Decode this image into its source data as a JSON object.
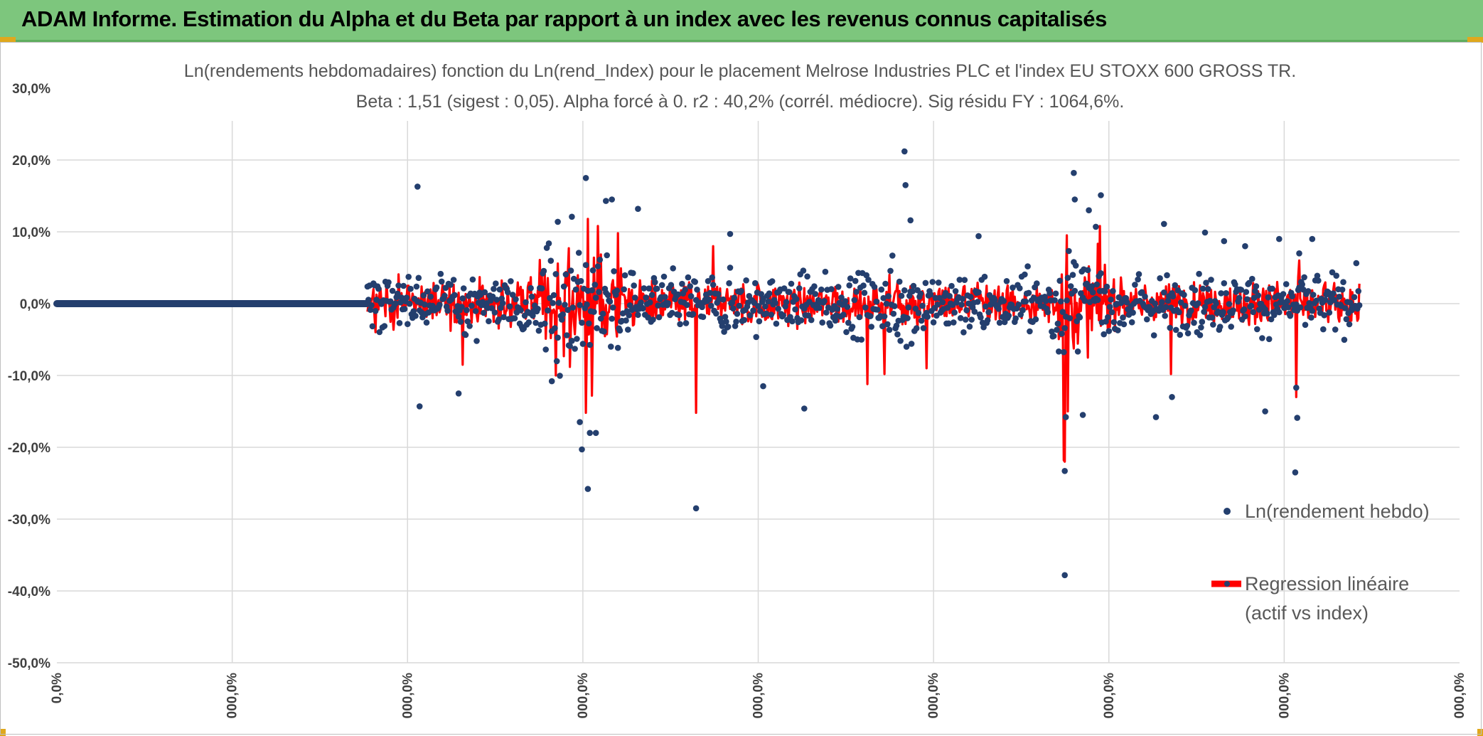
{
  "banner": {
    "title": "ADAM Informe. Estimation du Alpha et du Beta par rapport à un index avec les revenus connus capitalisés",
    "background_color": "#7dc67d",
    "accent_color": "#e0a81d"
  },
  "chart_data": {
    "type": "scatter",
    "title_line1": "Ln(rendements hebdomadaires) fonction du Ln(rend_Index) pour le placement Melrose Industries PLC et l'index EU STOXX 600 GROSS TR.",
    "title_line2": "Beta : 1,51 (sigest : 0,05). Alpha forcé à 0. r2 : 40,2% (corrél. médiocre). Sig résidu FY : 1064,6%.",
    "ylim": [
      -0.5,
      0.3
    ],
    "y_ticks": [
      {
        "value": 0.3,
        "label": "30,0%"
      },
      {
        "value": 0.2,
        "label": "20,0%"
      },
      {
        "value": 0.1,
        "label": "10,0%"
      },
      {
        "value": 0.0,
        "label": "0,0%"
      },
      {
        "value": -0.1,
        "label": "-10,0%"
      },
      {
        "value": -0.2,
        "label": "-20,0%"
      },
      {
        "value": -0.3,
        "label": "-30,0%"
      },
      {
        "value": -0.4,
        "label": "-40,0%"
      },
      {
        "value": -0.5,
        "label": "-50,0%"
      }
    ],
    "x_ticks": [
      "0,0%",
      "000,0%",
      "000,0%",
      "000,0%",
      "000,0%",
      "000,0%",
      "000,0%",
      "000,0%",
      "000,0%"
    ],
    "grid": true,
    "legend": {
      "placement": "bottom-right",
      "series_label": "Ln(rendement hebdo)",
      "line_label_1": "Regression linéaire",
      "line_label_2": "(actif vs index)"
    },
    "series": [
      {
        "name": "Ln(rendement hebdo)",
        "kind": "scatter",
        "color": "#243f6e"
      },
      {
        "name": "Regression linéaire (actif vs index)",
        "kind": "line",
        "color": "#ff0000"
      }
    ],
    "x_range": [
      0,
      1400
    ],
    "flat_segment_end": 310,
    "active_segment_end": 1300,
    "beta": 1.51,
    "highlighted_points": [
      {
        "x": 360,
        "y": 0.163
      },
      {
        "x": 362,
        "y": -0.143
      },
      {
        "x": 401,
        "y": -0.125
      },
      {
        "x": 528,
        "y": 0.175
      },
      {
        "x": 530,
        "y": -0.258
      },
      {
        "x": 524,
        "y": -0.203
      },
      {
        "x": 522,
        "y": -0.165
      },
      {
        "x": 532,
        "y": -0.18
      },
      {
        "x": 538,
        "y": -0.18
      },
      {
        "x": 548,
        "y": 0.143
      },
      {
        "x": 554,
        "y": 0.145
      },
      {
        "x": 514,
        "y": 0.121
      },
      {
        "x": 500,
        "y": 0.114
      },
      {
        "x": 494,
        "y": -0.108
      },
      {
        "x": 580,
        "y": 0.132
      },
      {
        "x": 638,
        "y": -0.285
      },
      {
        "x": 672,
        "y": 0.097
      },
      {
        "x": 705,
        "y": -0.115
      },
      {
        "x": 746,
        "y": -0.146
      },
      {
        "x": 846,
        "y": 0.212
      },
      {
        "x": 847,
        "y": 0.165
      },
      {
        "x": 852,
        "y": 0.116
      },
      {
        "x": 920,
        "y": 0.094
      },
      {
        "x": 1006,
        "y": -0.378
      },
      {
        "x": 1006,
        "y": -0.233
      },
      {
        "x": 1007,
        "y": -0.158
      },
      {
        "x": 1015,
        "y": 0.182
      },
      {
        "x": 1016,
        "y": 0.145
      },
      {
        "x": 1024,
        "y": -0.155
      },
      {
        "x": 1030,
        "y": 0.13
      },
      {
        "x": 1037,
        "y": 0.107
      },
      {
        "x": 1042,
        "y": 0.151
      },
      {
        "x": 1097,
        "y": -0.158
      },
      {
        "x": 1105,
        "y": 0.111
      },
      {
        "x": 1113,
        "y": -0.13
      },
      {
        "x": 1146,
        "y": 0.099
      },
      {
        "x": 1165,
        "y": 0.087
      },
      {
        "x": 1206,
        "y": -0.15
      },
      {
        "x": 1220,
        "y": 0.09
      },
      {
        "x": 1236,
        "y": -0.235
      },
      {
        "x": 1237,
        "y": -0.117
      },
      {
        "x": 1238,
        "y": -0.159
      },
      {
        "x": 1253,
        "y": 0.09
      },
      {
        "x": 1186,
        "y": 0.08
      },
      {
        "x": 1240,
        "y": 0.07
      }
    ],
    "regression_spikes": [
      {
        "x": 528,
        "y": -0.152
      },
      {
        "x": 530,
        "y": 0.118
      },
      {
        "x": 534,
        "y": -0.128
      },
      {
        "x": 540,
        "y": 0.108
      },
      {
        "x": 498,
        "y": -0.1
      },
      {
        "x": 512,
        "y": -0.088
      },
      {
        "x": 638,
        "y": -0.152
      },
      {
        "x": 560,
        "y": 0.098
      },
      {
        "x": 655,
        "y": 0.08
      },
      {
        "x": 809,
        "y": -0.112
      },
      {
        "x": 826,
        "y": -0.098
      },
      {
        "x": 868,
        "y": -0.09
      },
      {
        "x": 1005,
        "y": -0.218
      },
      {
        "x": 1006,
        "y": -0.22
      },
      {
        "x": 1008,
        "y": 0.095
      },
      {
        "x": 1041,
        "y": 0.108
      },
      {
        "x": 1009,
        "y": -0.15
      },
      {
        "x": 1237,
        "y": -0.13
      },
      {
        "x": 1240,
        "y": 0.06
      },
      {
        "x": 1112,
        "y": -0.098
      },
      {
        "x": 405,
        "y": -0.085
      }
    ]
  }
}
